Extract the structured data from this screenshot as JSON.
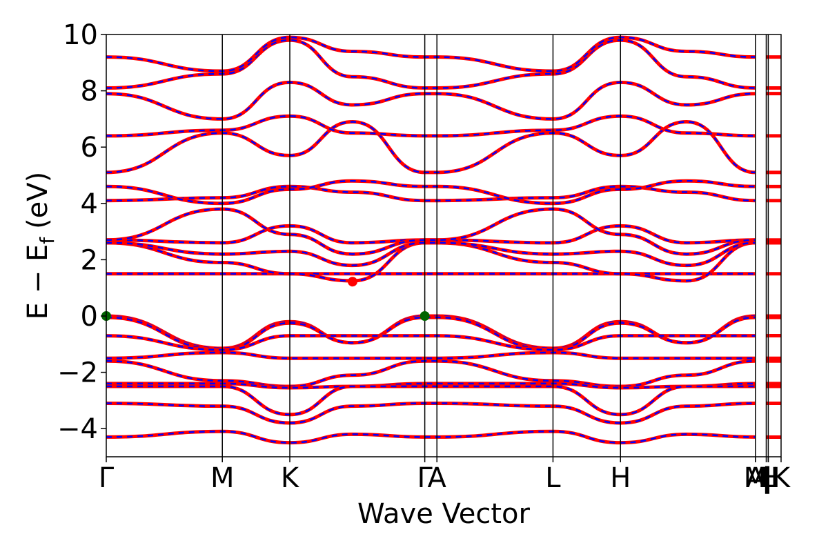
{
  "chart_data": {
    "type": "line",
    "title": "",
    "xlabel": "Wave Vector",
    "ylabel_main": "E − E",
    "ylabel_sub": "f",
    "ylabel_unit": "(eV)",
    "ylim": [
      -5,
      10
    ],
    "yticks": [
      -4,
      -2,
      0,
      2,
      4,
      6,
      8,
      10
    ],
    "ytick_labels": [
      "−4",
      "−2",
      "0",
      "2",
      "4",
      "6",
      "8",
      "10"
    ],
    "x_range": [
      0,
      1
    ],
    "kpoints": [
      {
        "label": "Γ",
        "x": 0.0
      },
      {
        "label": "M",
        "x": 0.172
      },
      {
        "label": "K",
        "x": 0.272
      },
      {
        "label": "Γ",
        "x": 0.472
      },
      {
        "label": "A",
        "x": 0.49
      },
      {
        "label": "L",
        "x": 0.662
      },
      {
        "label": "H",
        "x": 0.762
      },
      {
        "label": "A",
        "x": 0.962
      },
      {
        "label": "M",
        "x": 0.962
      },
      {
        "label": "|",
        "x": 0.978
      },
      {
        "label": "L",
        "x": 0.981
      },
      {
        "label": "|",
        "x": 0.981
      },
      {
        "label": "H",
        "x": 0.981
      },
      {
        "label": "K",
        "x": 1.0
      }
    ],
    "grid": false,
    "legend": "none",
    "series_colors": {
      "band_fill": "#ff0000",
      "band_dash": "#0000ff"
    },
    "special_points": [
      {
        "name": "vbm",
        "x": 0.0,
        "y": 0.0,
        "color": "#006400"
      },
      {
        "name": "vbm",
        "x": 0.472,
        "y": 0.0,
        "color": "#006400"
      },
      {
        "name": "cbm",
        "x": 0.365,
        "y": 1.22,
        "color": "#ff0000"
      }
    ],
    "bands": [
      {
        "y": [
          0.0,
          -1.15,
          -0.2,
          -0.95,
          0.0,
          0.0,
          -1.15,
          -0.2,
          -0.95,
          0.0
        ]
      },
      {
        "y": [
          -0.05,
          -1.2,
          -0.25,
          -0.95,
          -0.05,
          -0.05,
          -1.2,
          -0.25,
          -0.95,
          -0.05
        ]
      },
      {
        "y": [
          -0.7,
          -1.2,
          -0.7,
          -0.7,
          -0.7,
          -0.7,
          -1.2,
          -0.7,
          -0.7,
          -0.7
        ]
      },
      {
        "y": [
          -1.5,
          -1.3,
          -1.5,
          -1.5,
          -1.5,
          -1.5,
          -1.3,
          -1.5,
          -1.5,
          -1.5
        ]
      },
      {
        "y": [
          -1.6,
          -2.3,
          -2.5,
          -2.1,
          -1.6,
          -1.6,
          -2.3,
          -2.5,
          -2.1,
          -1.6
        ]
      },
      {
        "y": [
          -2.4,
          -2.4,
          -2.55,
          -2.5,
          -2.4,
          -2.4,
          -2.4,
          -2.55,
          -2.5,
          -2.4
        ]
      },
      {
        "y": [
          -2.5,
          -2.5,
          -3.5,
          -2.5,
          -2.5,
          -2.5,
          -2.5,
          -3.5,
          -2.5,
          -2.5
        ]
      },
      {
        "y": [
          -3.1,
          -3.2,
          -3.8,
          -3.2,
          -3.1,
          -3.1,
          -3.2,
          -3.8,
          -3.2,
          -3.1
        ]
      },
      {
        "y": [
          -4.3,
          -4.1,
          -4.5,
          -4.2,
          -4.3,
          -4.3,
          -4.1,
          -4.5,
          -4.2,
          -4.3
        ]
      },
      {
        "y": [
          1.5,
          1.5,
          1.5,
          1.5,
          1.5,
          1.5,
          1.5,
          1.5,
          1.5,
          1.5
        ]
      },
      {
        "y": [
          2.6,
          1.9,
          1.5,
          1.25,
          2.6,
          2.6,
          1.9,
          1.5,
          1.25,
          2.6
        ]
      },
      {
        "y": [
          2.6,
          2.2,
          2.3,
          1.8,
          2.6,
          2.6,
          2.2,
          2.3,
          1.8,
          2.6
        ]
      },
      {
        "y": [
          2.7,
          2.6,
          3.2,
          2.6,
          2.7,
          2.7,
          2.6,
          3.2,
          2.6,
          2.7
        ]
      },
      {
        "y": [
          2.7,
          3.8,
          2.9,
          2.2,
          2.7,
          2.7,
          3.8,
          2.9,
          2.2,
          2.7
        ]
      },
      {
        "y": [
          4.1,
          4.2,
          4.6,
          4.4,
          4.1,
          4.1,
          4.2,
          4.6,
          4.4,
          4.1
        ]
      },
      {
        "y": [
          4.6,
          4.0,
          4.5,
          4.8,
          4.6,
          4.6,
          4.0,
          4.5,
          4.8,
          4.6
        ]
      },
      {
        "y": [
          5.1,
          6.5,
          5.7,
          6.9,
          5.1,
          5.1,
          6.5,
          5.7,
          6.9,
          5.1
        ]
      },
      {
        "y": [
          6.4,
          6.6,
          7.1,
          6.5,
          6.4,
          6.4,
          6.6,
          7.1,
          6.5,
          6.4
        ]
      },
      {
        "y": [
          7.9,
          7.0,
          8.3,
          7.5,
          7.9,
          7.9,
          7.0,
          8.3,
          7.5,
          7.9
        ]
      },
      {
        "y": [
          8.1,
          8.6,
          9.8,
          8.5,
          8.1,
          8.1,
          8.6,
          9.8,
          8.5,
          8.1
        ]
      },
      {
        "y": [
          9.2,
          8.7,
          9.9,
          9.4,
          9.2,
          9.2,
          8.7,
          9.9,
          9.4,
          9.2
        ]
      }
    ]
  }
}
